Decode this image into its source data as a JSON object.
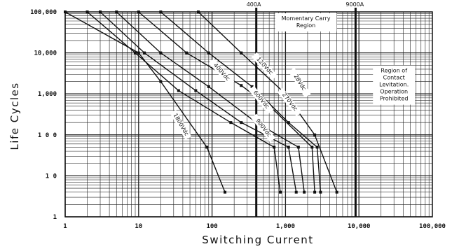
{
  "chart_data": {
    "type": "line",
    "xlabel": "Switching Current",
    "ylabel": "Life Cycles",
    "xscale": "log",
    "yscale": "log",
    "xlim": [
      1,
      100000
    ],
    "ylim": [
      1,
      100000
    ],
    "grid": true,
    "x_ticks": [
      {
        "value": 1,
        "label": "1"
      },
      {
        "value": 10,
        "label": "10"
      },
      {
        "value": 100,
        "label": "100"
      },
      {
        "value": 1000,
        "label": "1,000"
      },
      {
        "value": 10000,
        "label": "10,000"
      },
      {
        "value": 100000,
        "label": "100,000"
      }
    ],
    "y_ticks": [
      {
        "value": 1,
        "label": "1"
      },
      {
        "value": 10,
        "label": "1 0"
      },
      {
        "value": 100,
        "label": "1 0 0"
      },
      {
        "value": 1000,
        "label": "1,000"
      },
      {
        "value": 10000,
        "label": "10,000"
      },
      {
        "value": 100000,
        "label": "100,000"
      }
    ],
    "reference_lines": [
      {
        "x": 400,
        "label": "400A"
      },
      {
        "x": 9000,
        "label": "9000A"
      }
    ],
    "regions": [
      {
        "lines": [
          "Momentary Carry",
          "Region"
        ]
      },
      {
        "lines": [
          "Region of",
          "Contact",
          "Levitation.",
          "Operation",
          "Prohibited"
        ]
      }
    ],
    "series": [
      {
        "name": "28Vdc",
        "points": [
          [
            65,
            100000
          ],
          [
            250,
            10000
          ],
          [
            1000,
            1000
          ],
          [
            2500,
            100
          ],
          [
            5000,
            4
          ]
        ]
      },
      {
        "name": "120Vdc",
        "points": [
          [
            20,
            100000
          ],
          [
            90,
            10000
          ],
          [
            350,
            1500
          ],
          [
            1100,
            200
          ],
          [
            2700,
            50
          ],
          [
            3000,
            4
          ]
        ]
      },
      {
        "name": "270Vdc",
        "points": [
          [
            10,
            100000
          ],
          [
            45,
            10000
          ],
          [
            250,
            1600
          ],
          [
            650,
            450
          ],
          [
            2300,
            50
          ],
          [
            2500,
            4
          ]
        ]
      },
      {
        "name": "400Vdc",
        "points": [
          [
            5,
            100000
          ],
          [
            20,
            10000
          ],
          [
            90,
            1500
          ],
          [
            400,
            200
          ],
          [
            1500,
            50
          ],
          [
            1800,
            4
          ]
        ]
      },
      {
        "name": "600Vdc",
        "points": [
          [
            3,
            100000
          ],
          [
            12,
            10000
          ],
          [
            60,
            1200
          ],
          [
            250,
            200
          ],
          [
            1100,
            50
          ],
          [
            1400,
            4
          ]
        ]
      },
      {
        "name": "900Vdc",
        "points": [
          [
            2,
            100000
          ],
          [
            9,
            10000
          ],
          [
            35,
            1200
          ],
          [
            180,
            200
          ],
          [
            700,
            50
          ],
          [
            850,
            4
          ]
        ]
      },
      {
        "name": "1800Vdc",
        "points": [
          [
            1,
            100000
          ],
          [
            10,
            10000
          ],
          [
            20,
            2000
          ],
          [
            85,
            50
          ],
          [
            150,
            4
          ]
        ]
      }
    ]
  }
}
